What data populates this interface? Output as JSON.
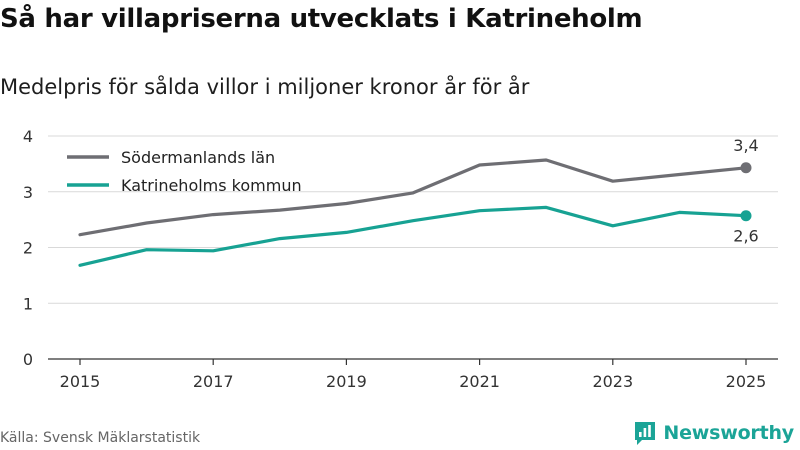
{
  "title": "Så har villapriserna utvecklats i Katrineholm",
  "subtitle": "Medelpris för sålda villor i miljoner kronor år för år",
  "source": "Källa: Svensk Mäklarstatistik",
  "brand": {
    "name": "Newsworthy",
    "icon": "newsworthy-logo-icon",
    "color": "#1ba497"
  },
  "chart_data": {
    "type": "line",
    "title": "Så har villapriserna utvecklats i Katrineholm",
    "subtitle": "Medelpris för sålda villor i miljoner kronor år för år",
    "xlabel": "",
    "ylabel": "",
    "x": [
      2015,
      2016,
      2017,
      2018,
      2019,
      2020,
      2021,
      2022,
      2023,
      2024,
      2025
    ],
    "x_ticks": [
      2015,
      2017,
      2019,
      2021,
      2023,
      2025
    ],
    "y_ticks": [
      0,
      1,
      2,
      3,
      4
    ],
    "ylim": [
      0,
      4
    ],
    "grid": true,
    "legend_position": "top-left",
    "series": [
      {
        "name": "Södermanlands län",
        "color": "#6e6e73",
        "values": [
          2.23,
          2.44,
          2.59,
          2.67,
          2.79,
          2.98,
          3.48,
          3.57,
          3.19,
          3.31,
          3.43
        ],
        "end_label": "3,4"
      },
      {
        "name": "Katrineholms kommun",
        "color": "#17a293",
        "values": [
          1.68,
          1.96,
          1.94,
          2.16,
          2.27,
          2.48,
          2.66,
          2.72,
          2.39,
          2.63,
          2.57
        ],
        "end_label": "2,6"
      }
    ]
  }
}
